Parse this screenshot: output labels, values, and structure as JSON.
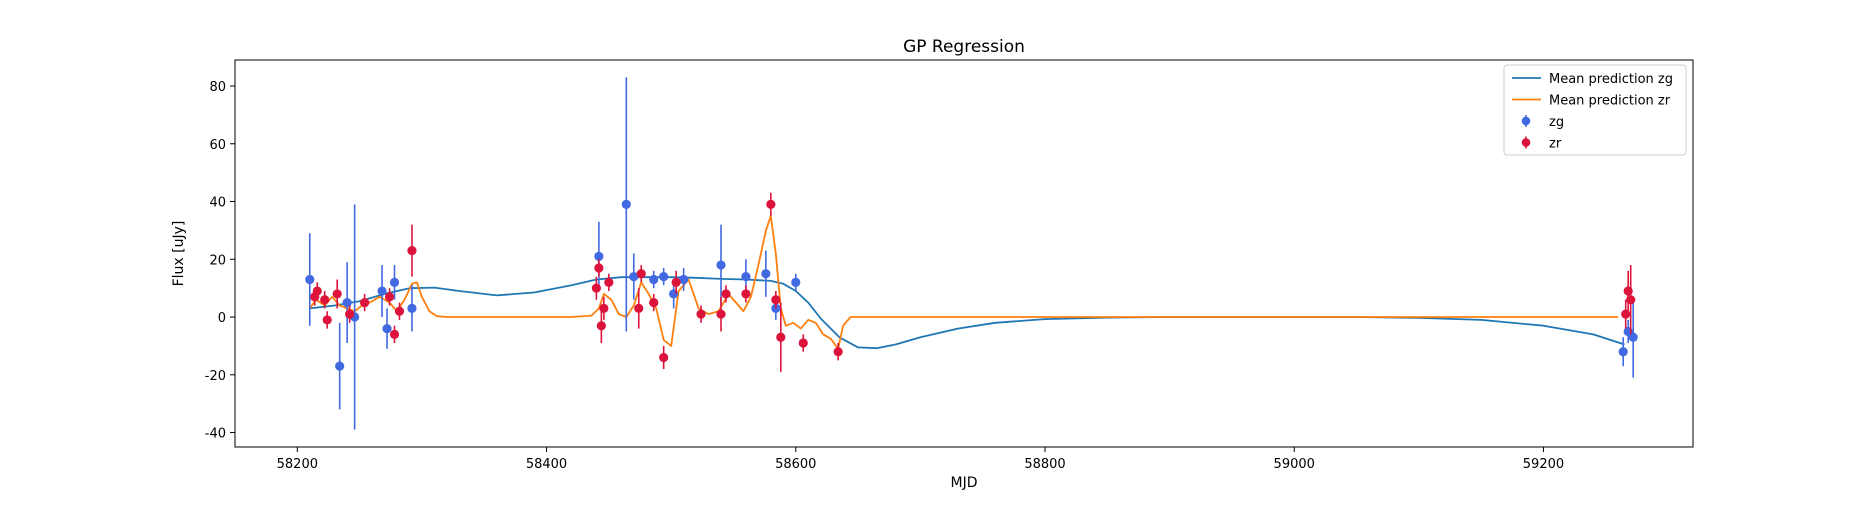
{
  "chart_data": {
    "type": "scatter",
    "title": "GP Regression",
    "xlabel": "MJD",
    "ylabel": "Flux [uJy]",
    "xlim": [
      58150,
      59320
    ],
    "ylim": [
      -45,
      89
    ],
    "xticks": [
      58200,
      58400,
      58600,
      58800,
      59000,
      59200
    ],
    "yticks": [
      -40,
      -20,
      0,
      20,
      40,
      60,
      80
    ],
    "grid": false,
    "legend_position": "top-right",
    "series": [
      {
        "name": "Mean prediction zg",
        "kind": "line",
        "color": "#1f77b4",
        "x": [
          58210,
          58230,
          58250,
          58270,
          58290,
          58310,
          58330,
          58360,
          58390,
          58420,
          58440,
          58460,
          58480,
          58500,
          58520,
          58540,
          58560,
          58580,
          58590,
          58600,
          58610,
          58620,
          58635,
          58650,
          58665,
          58680,
          58700,
          58730,
          58760,
          58800,
          58850,
          58900,
          58950,
          59000,
          59050,
          59100,
          59150,
          59200,
          59240,
          59265
        ],
        "y": [
          3.0,
          4.0,
          5.5,
          8.0,
          10.0,
          10.2,
          9.0,
          7.5,
          8.5,
          11.0,
          13.0,
          13.8,
          13.8,
          13.8,
          13.6,
          13.2,
          13.0,
          12.5,
          11.5,
          9.0,
          5.0,
          -0.5,
          -7.0,
          -10.5,
          -10.8,
          -9.5,
          -7.0,
          -4.0,
          -2.0,
          -0.7,
          -0.2,
          0.0,
          0.0,
          0.0,
          0.0,
          -0.3,
          -1.0,
          -3.0,
          -6.0,
          -9.5
        ]
      },
      {
        "name": "Mean prediction zr",
        "kind": "line",
        "color": "#ff7f0e",
        "x": [
          58210,
          58215,
          58222,
          58228,
          58234,
          58240,
          58246,
          58252,
          58258,
          58266,
          58274,
          58280,
          58286,
          58292,
          58296,
          58300,
          58306,
          58312,
          58320,
          58340,
          58380,
          58420,
          58436,
          58442,
          58446,
          58452,
          58458,
          58464,
          58470,
          58476,
          58482,
          58488,
          58494,
          58500,
          58506,
          58514,
          58522,
          58530,
          58538,
          58546,
          58552,
          58558,
          58564,
          58570,
          58576,
          58580,
          58584,
          58588,
          58592,
          58598,
          58604,
          58610,
          58616,
          58622,
          58628,
          58634,
          58638,
          58644,
          58660,
          58700,
          58800,
          59000,
          59200,
          59260
        ],
        "y": [
          3,
          6,
          4,
          7,
          4,
          3,
          2,
          4,
          5,
          7,
          5,
          2,
          6,
          11.5,
          12,
          7,
          2,
          0.3,
          0,
          0,
          0,
          0,
          0.5,
          3,
          8,
          6,
          1,
          0,
          4,
          12,
          8,
          3,
          -8,
          -10,
          9,
          13,
          3,
          1,
          2,
          8,
          5,
          2,
          7,
          18,
          30,
          35,
          22,
          3,
          -3,
          -2,
          -4,
          -1,
          -2,
          -6,
          -7.5,
          -11,
          -3,
          0,
          0,
          0,
          0,
          0,
          0,
          0
        ]
      },
      {
        "name": "zg",
        "kind": "errorbar",
        "color": "#4169e1",
        "x": [
          58210,
          58234,
          58240,
          58246,
          58268,
          58272,
          58278,
          58292,
          58442,
          58464,
          58470,
          58486,
          58494,
          58502,
          58510,
          58540,
          58560,
          58576,
          58584,
          58600,
          59264,
          59268,
          59272
        ],
        "y": [
          13,
          -17,
          5,
          0,
          9,
          -4,
          12,
          3,
          21,
          39,
          14,
          13,
          14,
          8,
          13,
          18,
          14,
          15,
          3,
          12,
          -12,
          -5,
          -7
        ],
        "err": [
          16,
          15,
          14,
          39,
          9,
          7,
          6,
          8,
          12,
          44,
          8,
          3,
          3,
          5,
          4,
          14,
          6,
          8,
          4,
          3,
          5,
          4,
          14
        ]
      },
      {
        "name": "zr",
        "kind": "errorbar",
        "color": "#dc143c",
        "x": [
          58214,
          58216,
          58222,
          58224,
          58232,
          58242,
          58254,
          58274,
          58278,
          58282,
          58292,
          58440,
          58442,
          58444,
          58446,
          58450,
          58474,
          58476,
          58486,
          58494,
          58504,
          58524,
          58540,
          58544,
          58560,
          58580,
          58584,
          58588,
          58606,
          58634,
          59266,
          59268,
          59270
        ],
        "y": [
          7,
          9,
          6,
          -1,
          8,
          1,
          5,
          7,
          -6,
          2,
          23,
          10,
          17,
          -3,
          3,
          12,
          3,
          15,
          5,
          -14,
          12,
          1,
          1,
          8,
          8,
          39,
          6,
          -7,
          -9,
          -12,
          1,
          9,
          6
        ],
        "err": [
          3,
          3,
          3,
          3,
          5,
          3,
          3,
          3,
          3,
          3,
          9,
          4,
          3,
          6,
          4,
          3,
          7,
          3,
          3,
          4,
          4,
          3,
          6,
          3,
          3,
          4,
          3,
          12,
          3,
          3,
          5,
          7,
          12
        ]
      }
    ]
  }
}
